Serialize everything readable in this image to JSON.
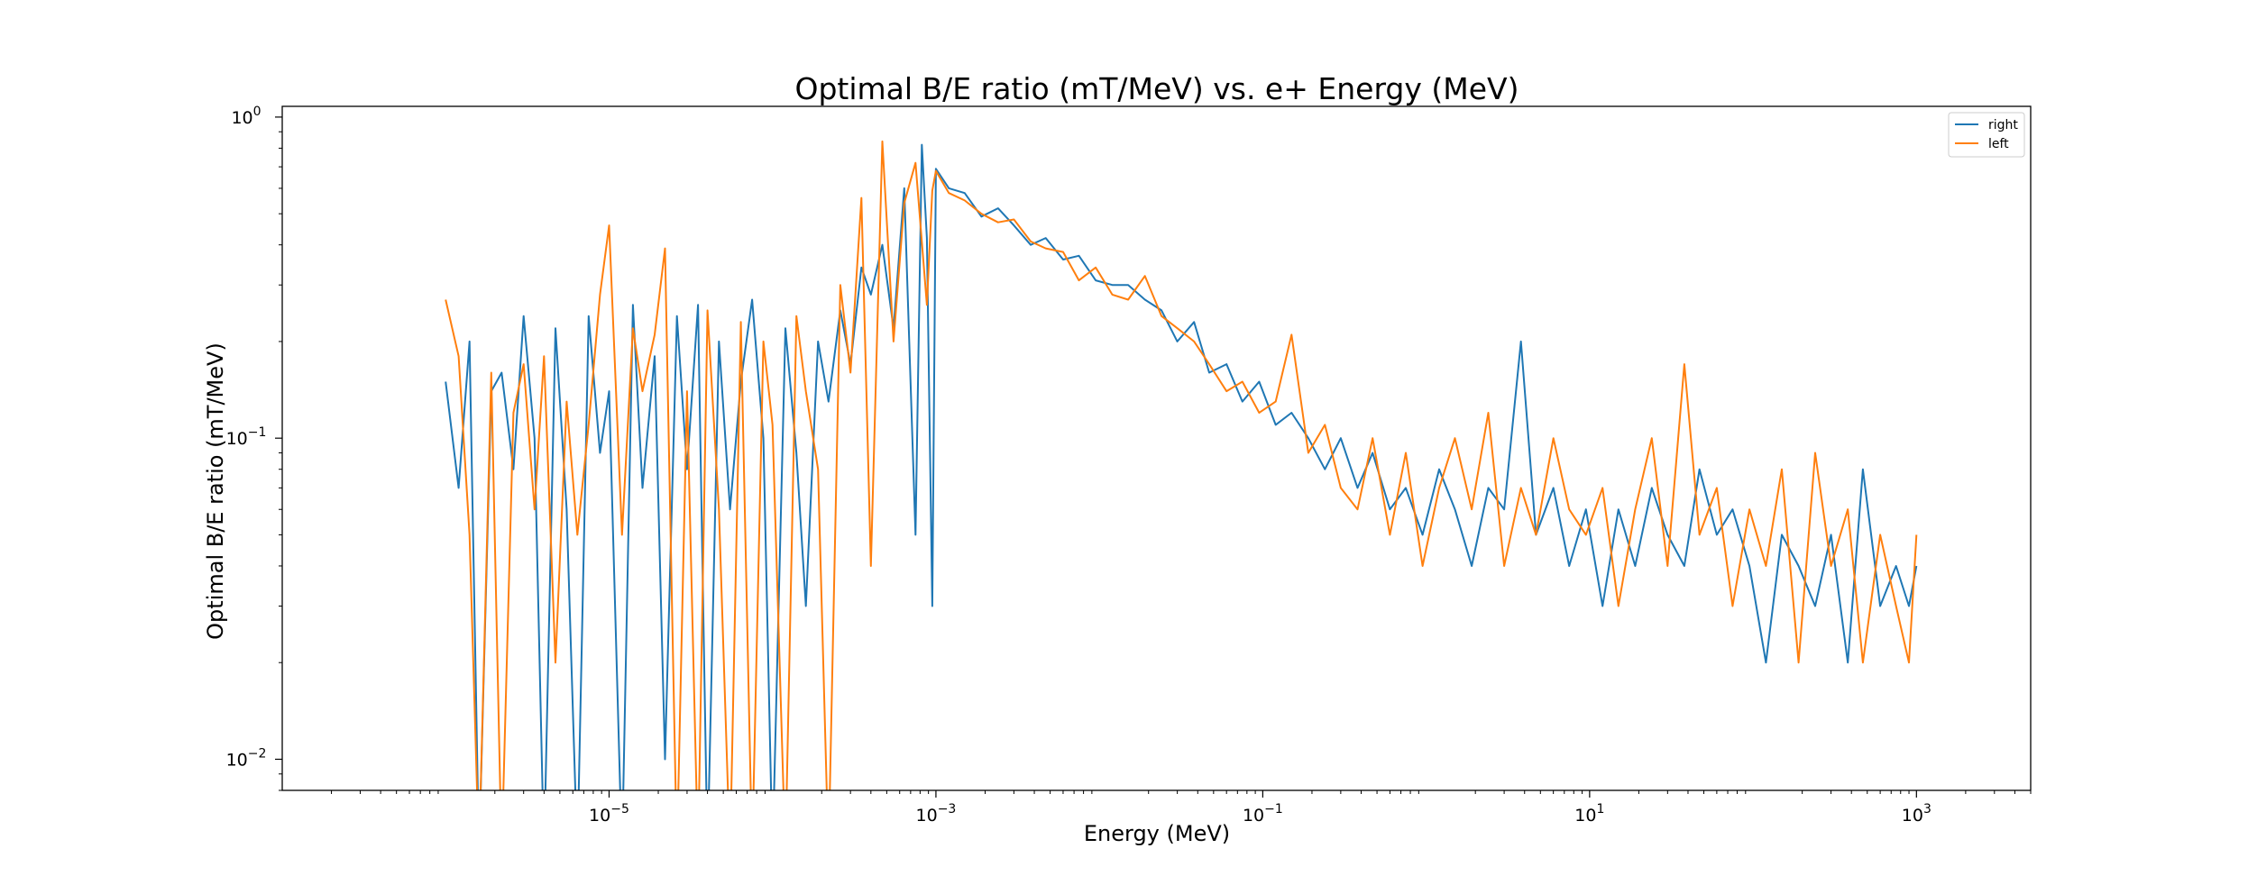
{
  "chart_data": {
    "type": "line",
    "title": "Optimal B/E ratio (mT/MeV) vs. e+ Energy (MeV)",
    "xlabel": "Energy (MeV)",
    "ylabel": "Optimal B/E ratio (mT/MeV)",
    "xscale": "log",
    "yscale": "log",
    "xlim": [
      1e-07,
      5000
    ],
    "ylim": [
      0.008,
      1.08
    ],
    "grid": false,
    "legend": "top-right",
    "xticks": [
      {
        "value": 1e-05,
        "base": "10",
        "exp": "−5"
      },
      {
        "value": 0.001,
        "base": "10",
        "exp": "−3"
      },
      {
        "value": 0.1,
        "base": "10",
        "exp": "−1"
      },
      {
        "value": 10,
        "base": "10",
        "exp": "1"
      },
      {
        "value": 1000,
        "base": "10",
        "exp": "3"
      }
    ],
    "yticks": [
      {
        "value": 0.01,
        "base": "10",
        "exp": "−2"
      },
      {
        "value": 0.1,
        "base": "10",
        "exp": "−1"
      },
      {
        "value": 1,
        "base": "10",
        "exp": "0"
      }
    ],
    "series": [
      {
        "name": "right",
        "color": "#1f77b4",
        "points": [
          [
            1e-06,
            0.15
          ],
          [
            1.2e-06,
            0.07
          ],
          [
            1.4e-06,
            0.2
          ],
          [
            1.6e-06,
            0.005
          ],
          [
            1.9e-06,
            0.14
          ],
          [
            2.2e-06,
            0.16
          ],
          [
            2.6e-06,
            0.08
          ],
          [
            3e-06,
            0.24
          ],
          [
            3.5e-06,
            0.1
          ],
          [
            4e-06,
            0.005
          ],
          [
            4.7e-06,
            0.22
          ],
          [
            5.5e-06,
            0.06
          ],
          [
            6.4e-06,
            0.005
          ],
          [
            7.5e-06,
            0.24
          ],
          [
            8.8e-06,
            0.09
          ],
          [
            1e-05,
            0.14
          ],
          [
            1.2e-05,
            0.005
          ],
          [
            1.4e-05,
            0.26
          ],
          [
            1.6e-05,
            0.07
          ],
          [
            1.9e-05,
            0.18
          ],
          [
            2.2e-05,
            0.01
          ],
          [
            2.6e-05,
            0.24
          ],
          [
            3e-05,
            0.08
          ],
          [
            3.5e-05,
            0.26
          ],
          [
            4e-05,
            0.005
          ],
          [
            4.7e-05,
            0.2
          ],
          [
            5.5e-05,
            0.06
          ],
          [
            6.4e-05,
            0.15
          ],
          [
            7.5e-05,
            0.27
          ],
          [
            8.8e-05,
            0.1
          ],
          [
            0.0001,
            0.005
          ],
          [
            0.00012,
            0.22
          ],
          [
            0.00014,
            0.09
          ],
          [
            0.00016,
            0.03
          ],
          [
            0.00019,
            0.2
          ],
          [
            0.00022,
            0.13
          ],
          [
            0.00026,
            0.25
          ],
          [
            0.0003,
            0.17
          ],
          [
            0.00035,
            0.34
          ],
          [
            0.0004,
            0.28
          ],
          [
            0.00047,
            0.4
          ],
          [
            0.00055,
            0.22
          ],
          [
            0.00064,
            0.6
          ],
          [
            0.00075,
            0.05
          ],
          [
            0.00082,
            0.82
          ],
          [
            0.00088,
            0.42
          ],
          [
            0.00095,
            0.03
          ],
          [
            0.001,
            0.69
          ],
          [
            0.0012,
            0.6
          ],
          [
            0.0015,
            0.58
          ],
          [
            0.0019,
            0.49
          ],
          [
            0.0024,
            0.52
          ],
          [
            0.003,
            0.46
          ],
          [
            0.0038,
            0.4
          ],
          [
            0.0047,
            0.42
          ],
          [
            0.006,
            0.36
          ],
          [
            0.0075,
            0.37
          ],
          [
            0.0095,
            0.31
          ],
          [
            0.012,
            0.3
          ],
          [
            0.015,
            0.3
          ],
          [
            0.019,
            0.27
          ],
          [
            0.024,
            0.25
          ],
          [
            0.03,
            0.2
          ],
          [
            0.038,
            0.23
          ],
          [
            0.047,
            0.16
          ],
          [
            0.06,
            0.17
          ],
          [
            0.075,
            0.13
          ],
          [
            0.095,
            0.15
          ],
          [
            0.12,
            0.11
          ],
          [
            0.15,
            0.12
          ],
          [
            0.19,
            0.1
          ],
          [
            0.24,
            0.08
          ],
          [
            0.3,
            0.1
          ],
          [
            0.38,
            0.07
          ],
          [
            0.47,
            0.09
          ],
          [
            0.6,
            0.06
          ],
          [
            0.75,
            0.07
          ],
          [
            0.95,
            0.05
          ],
          [
            1.2,
            0.08
          ],
          [
            1.5,
            0.06
          ],
          [
            1.9,
            0.04
          ],
          [
            2.4,
            0.07
          ],
          [
            3,
            0.06
          ],
          [
            3.8,
            0.2
          ],
          [
            4.7,
            0.05
          ],
          [
            6,
            0.07
          ],
          [
            7.5,
            0.04
          ],
          [
            9.5,
            0.06
          ],
          [
            12,
            0.03
          ],
          [
            15,
            0.06
          ],
          [
            19,
            0.04
          ],
          [
            24,
            0.07
          ],
          [
            30,
            0.05
          ],
          [
            38,
            0.04
          ],
          [
            47,
            0.08
          ],
          [
            60,
            0.05
          ],
          [
            75,
            0.06
          ],
          [
            95,
            0.04
          ],
          [
            120,
            0.02
          ],
          [
            150,
            0.05
          ],
          [
            190,
            0.04
          ],
          [
            240,
            0.03
          ],
          [
            300,
            0.05
          ],
          [
            380,
            0.02
          ],
          [
            470,
            0.08
          ],
          [
            600,
            0.03
          ],
          [
            750,
            0.04
          ],
          [
            900,
            0.03
          ],
          [
            1000,
            0.04
          ]
        ]
      },
      {
        "name": "left",
        "color": "#ff7f0e",
        "points": [
          [
            1e-06,
            0.27
          ],
          [
            1.2e-06,
            0.18
          ],
          [
            1.4e-06,
            0.05
          ],
          [
            1.6e-06,
            0.005
          ],
          [
            1.9e-06,
            0.16
          ],
          [
            2.2e-06,
            0.005
          ],
          [
            2.6e-06,
            0.12
          ],
          [
            3e-06,
            0.17
          ],
          [
            3.5e-06,
            0.06
          ],
          [
            4e-06,
            0.18
          ],
          [
            4.7e-06,
            0.02
          ],
          [
            5.5e-06,
            0.13
          ],
          [
            6.4e-06,
            0.05
          ],
          [
            7.5e-06,
            0.11
          ],
          [
            8.8e-06,
            0.28
          ],
          [
            1e-05,
            0.46
          ],
          [
            1.2e-05,
            0.05
          ],
          [
            1.4e-05,
            0.22
          ],
          [
            1.6e-05,
            0.14
          ],
          [
            1.9e-05,
            0.21
          ],
          [
            2.2e-05,
            0.39
          ],
          [
            2.6e-05,
            0.005
          ],
          [
            3e-05,
            0.14
          ],
          [
            3.5e-05,
            0.005
          ],
          [
            4e-05,
            0.25
          ],
          [
            4.7e-05,
            0.06
          ],
          [
            5.5e-05,
            0.005
          ],
          [
            6.4e-05,
            0.23
          ],
          [
            7.5e-05,
            0.005
          ],
          [
            8.8e-05,
            0.2
          ],
          [
            0.0001,
            0.11
          ],
          [
            0.00012,
            0.005
          ],
          [
            0.00014,
            0.24
          ],
          [
            0.00016,
            0.14
          ],
          [
            0.00019,
            0.08
          ],
          [
            0.00022,
            0.005
          ],
          [
            0.00026,
            0.3
          ],
          [
            0.0003,
            0.16
          ],
          [
            0.00035,
            0.56
          ],
          [
            0.0004,
            0.04
          ],
          [
            0.00047,
            0.84
          ],
          [
            0.00055,
            0.2
          ],
          [
            0.00064,
            0.54
          ],
          [
            0.00075,
            0.72
          ],
          [
            0.00088,
            0.26
          ],
          [
            0.00095,
            0.59
          ],
          [
            0.001,
            0.68
          ],
          [
            0.0012,
            0.58
          ],
          [
            0.0015,
            0.55
          ],
          [
            0.0019,
            0.5
          ],
          [
            0.0024,
            0.47
          ],
          [
            0.003,
            0.48
          ],
          [
            0.0038,
            0.41
          ],
          [
            0.0047,
            0.39
          ],
          [
            0.006,
            0.38
          ],
          [
            0.0075,
            0.31
          ],
          [
            0.0095,
            0.34
          ],
          [
            0.012,
            0.28
          ],
          [
            0.015,
            0.27
          ],
          [
            0.019,
            0.32
          ],
          [
            0.024,
            0.24
          ],
          [
            0.03,
            0.22
          ],
          [
            0.038,
            0.2
          ],
          [
            0.047,
            0.17
          ],
          [
            0.06,
            0.14
          ],
          [
            0.075,
            0.15
          ],
          [
            0.095,
            0.12
          ],
          [
            0.12,
            0.13
          ],
          [
            0.15,
            0.21
          ],
          [
            0.19,
            0.09
          ],
          [
            0.24,
            0.11
          ],
          [
            0.3,
            0.07
          ],
          [
            0.38,
            0.06
          ],
          [
            0.47,
            0.1
          ],
          [
            0.6,
            0.05
          ],
          [
            0.75,
            0.09
          ],
          [
            0.95,
            0.04
          ],
          [
            1.2,
            0.07
          ],
          [
            1.5,
            0.1
          ],
          [
            1.9,
            0.06
          ],
          [
            2.4,
            0.12
          ],
          [
            3,
            0.04
          ],
          [
            3.8,
            0.07
          ],
          [
            4.7,
            0.05
          ],
          [
            6,
            0.1
          ],
          [
            7.5,
            0.06
          ],
          [
            9.5,
            0.05
          ],
          [
            12,
            0.07
          ],
          [
            15,
            0.03
          ],
          [
            19,
            0.06
          ],
          [
            24,
            0.1
          ],
          [
            30,
            0.04
          ],
          [
            38,
            0.17
          ],
          [
            47,
            0.05
          ],
          [
            60,
            0.07
          ],
          [
            75,
            0.03
          ],
          [
            95,
            0.06
          ],
          [
            120,
            0.04
          ],
          [
            150,
            0.08
          ],
          [
            190,
            0.02
          ],
          [
            240,
            0.09
          ],
          [
            300,
            0.04
          ],
          [
            380,
            0.06
          ],
          [
            470,
            0.02
          ],
          [
            600,
            0.05
          ],
          [
            750,
            0.03
          ],
          [
            900,
            0.02
          ],
          [
            1000,
            0.05
          ]
        ]
      }
    ]
  }
}
